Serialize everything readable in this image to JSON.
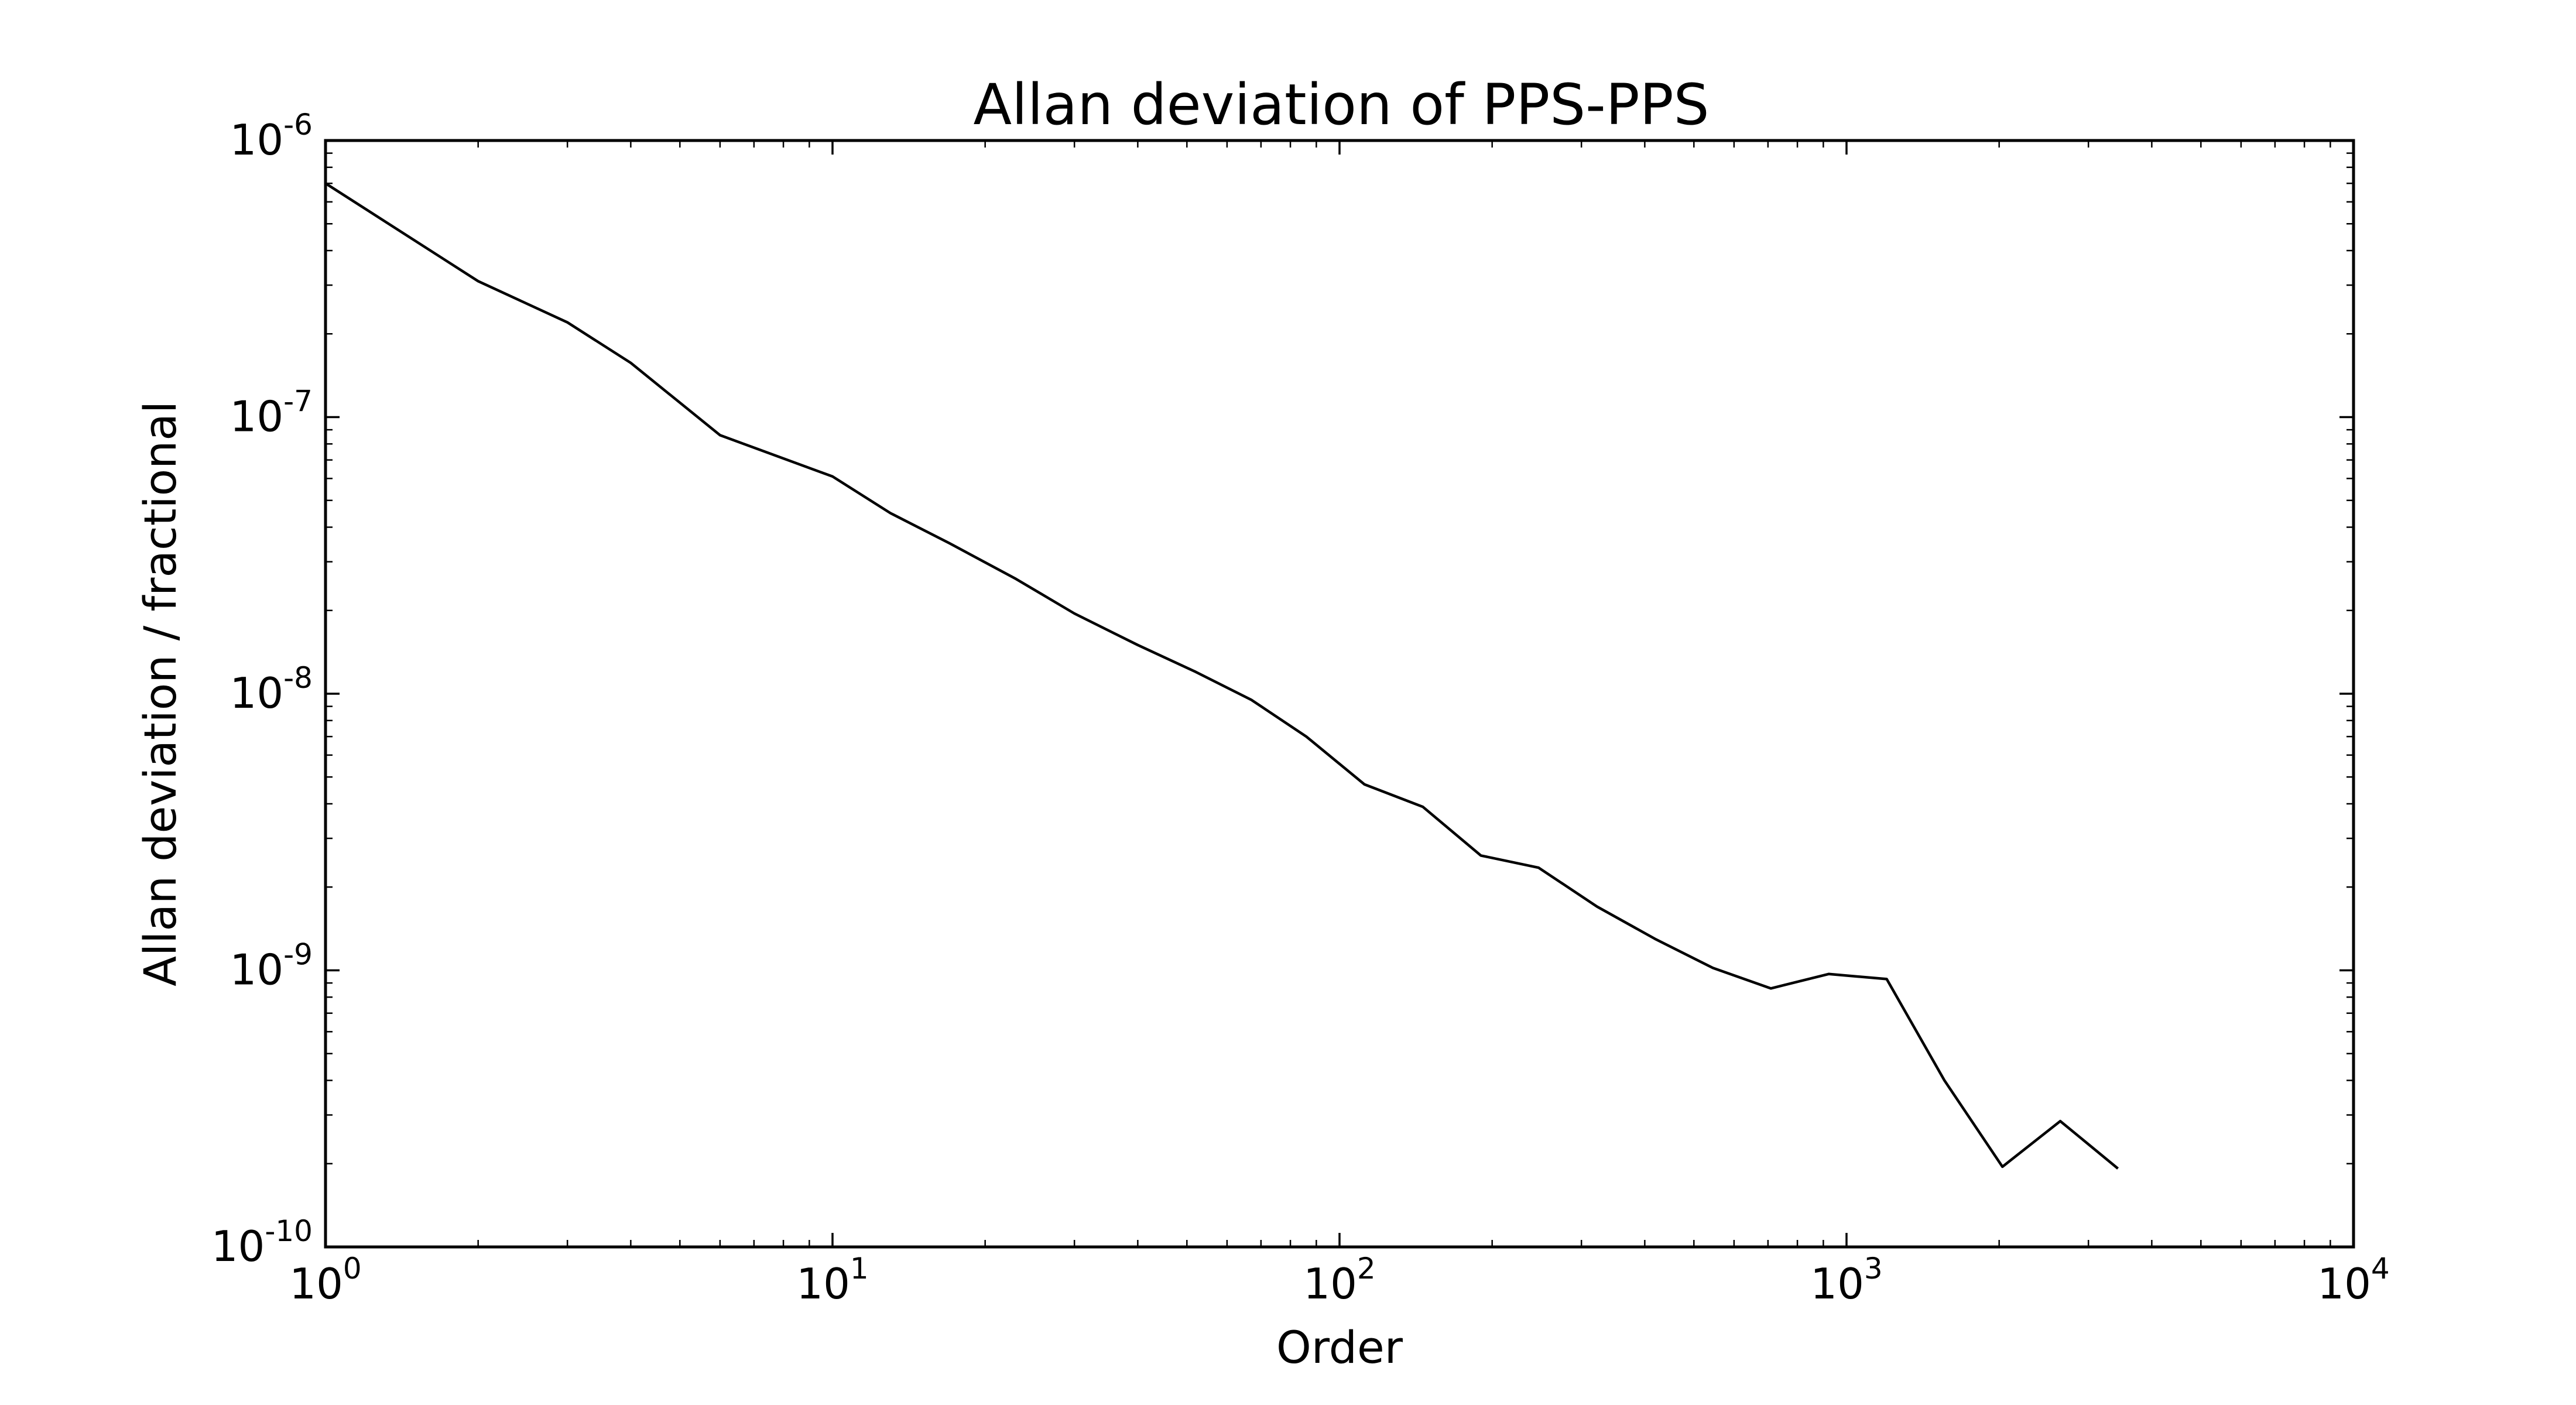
{
  "chart_data": {
    "type": "line",
    "title": "Allan deviation of PPS-PPS",
    "xlabel": "Order",
    "ylabel": "Allan deviation / fractional",
    "x_scale": "log",
    "y_scale": "log",
    "xlim": [
      1,
      10000
    ],
    "ylim": [
      1e-10,
      1e-06
    ],
    "grid": false,
    "legend": "none",
    "x_ticks": [
      {
        "base": "10",
        "exp": "0",
        "value": 1
      },
      {
        "base": "10",
        "exp": "1",
        "value": 10
      },
      {
        "base": "10",
        "exp": "2",
        "value": 100
      },
      {
        "base": "10",
        "exp": "3",
        "value": 1000
      },
      {
        "base": "10",
        "exp": "4",
        "value": 10000
      }
    ],
    "y_ticks": [
      {
        "base": "10",
        "exp": "-10",
        "value": 1e-10
      },
      {
        "base": "10",
        "exp": "-9",
        "value": 1e-09
      },
      {
        "base": "10",
        "exp": "-8",
        "value": 1e-08
      },
      {
        "base": "10",
        "exp": "-7",
        "value": 1e-07
      },
      {
        "base": "10",
        "exp": "-6",
        "value": 1e-06
      }
    ],
    "series": [
      {
        "color": "#000000",
        "x": [
          1,
          2,
          3,
          4,
          6,
          10,
          13,
          17,
          23,
          30,
          40,
          52,
          67,
          86,
          112,
          146,
          190,
          247,
          322,
          419,
          545,
          709,
          922,
          1200,
          1560,
          2030,
          2640,
          3430
        ],
        "y": [
          7e-07,
          3.1e-07,
          2.2e-07,
          1.57e-07,
          8.6e-08,
          6.1e-08,
          4.5e-08,
          3.5e-08,
          2.6e-08,
          1.95e-08,
          1.5e-08,
          1.2e-08,
          9.5e-09,
          7e-09,
          4.7e-09,
          3.9e-09,
          2.6e-09,
          2.35e-09,
          1.7e-09,
          1.3e-09,
          1.02e-09,
          8.6e-10,
          9.7e-10,
          9.3e-10,
          4e-10,
          1.95e-10,
          2.85e-10,
          1.92e-10
        ]
      }
    ]
  }
}
